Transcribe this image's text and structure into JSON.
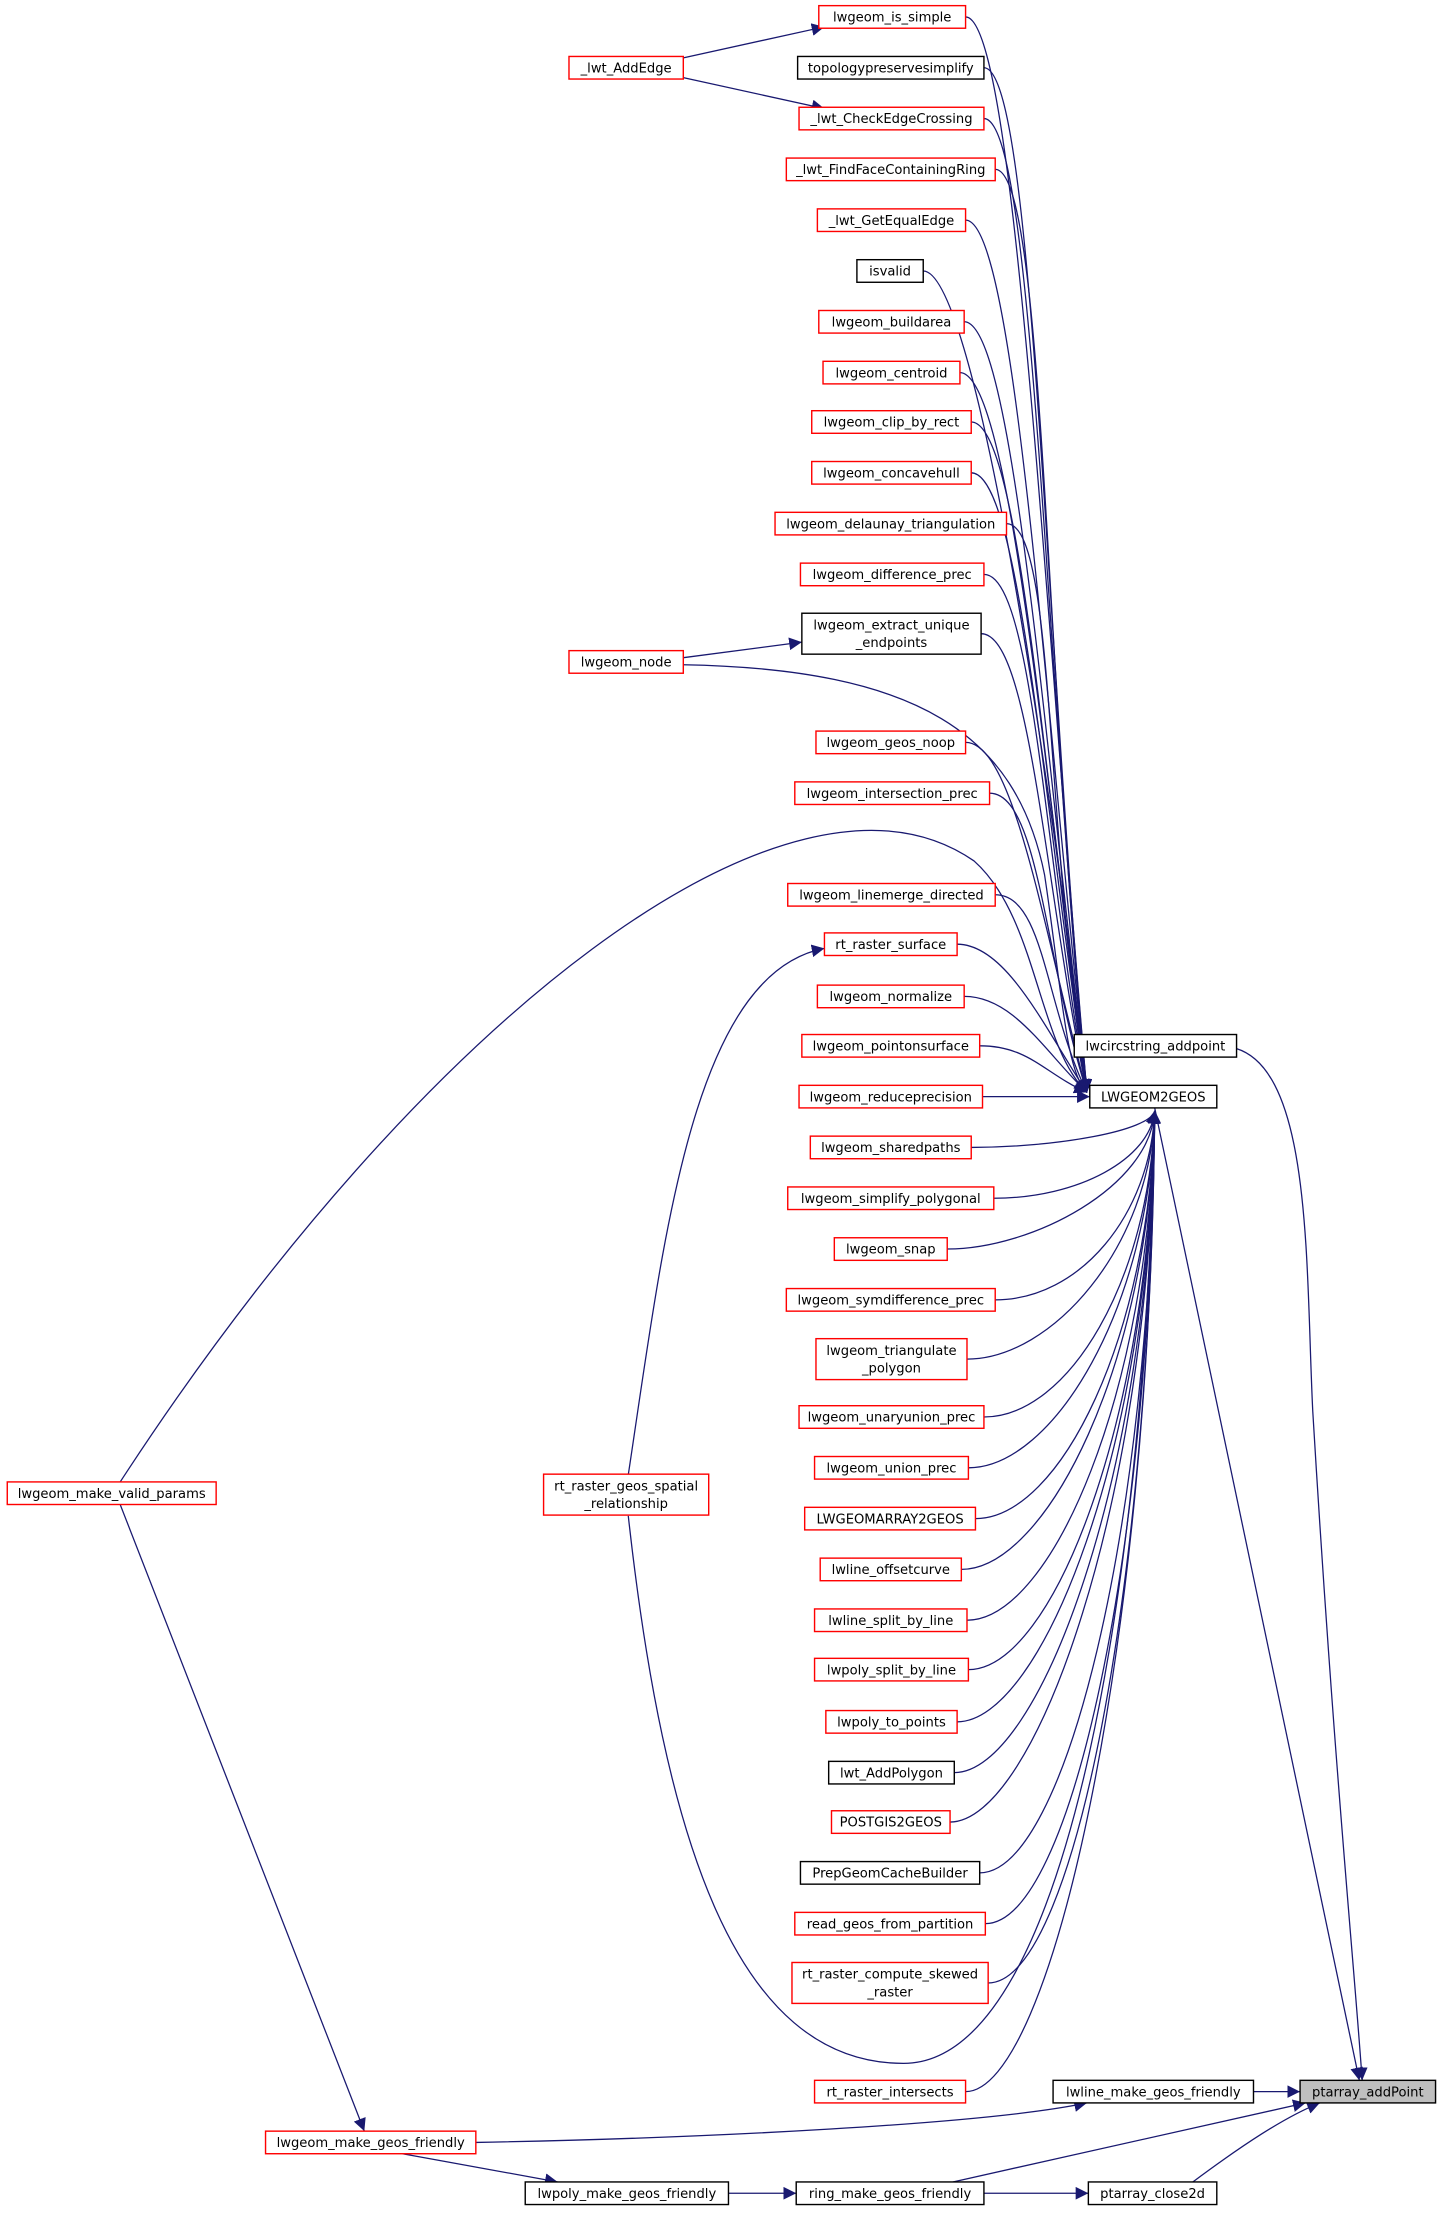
{
  "colors": {
    "edge": "#191970",
    "caller_border_truncated": "#ff0000",
    "caller_border": "#000000",
    "focus_fill": "#bfbfbf"
  },
  "nodes": [
    {
      "id": "lwgeom_is_simple",
      "lines": [
        "lwgeom_is_simple"
      ],
      "border": "red"
    },
    {
      "id": "topologypreservesimplify",
      "lines": [
        "topologypreservesimplify"
      ],
      "border": "black"
    },
    {
      "id": "_lwt_CheckEdgeCrossing",
      "lines": [
        "_lwt_CheckEdgeCrossing"
      ],
      "border": "red"
    },
    {
      "id": "_lwt_FindFaceContainingRing",
      "lines": [
        "_lwt_FindFaceContainingRing"
      ],
      "border": "red"
    },
    {
      "id": "_lwt_GetEqualEdge",
      "lines": [
        "_lwt_GetEqualEdge"
      ],
      "border": "red"
    },
    {
      "id": "isvalid",
      "lines": [
        "isvalid"
      ],
      "border": "black"
    },
    {
      "id": "lwgeom_buildarea",
      "lines": [
        "lwgeom_buildarea"
      ],
      "border": "red"
    },
    {
      "id": "lwgeom_centroid",
      "lines": [
        "lwgeom_centroid"
      ],
      "border": "red"
    },
    {
      "id": "lwgeom_clip_by_rect",
      "lines": [
        "lwgeom_clip_by_rect"
      ],
      "border": "red"
    },
    {
      "id": "lwgeom_concavehull",
      "lines": [
        "lwgeom_concavehull"
      ],
      "border": "red"
    },
    {
      "id": "lwgeom_delaunay_triangulation",
      "lines": [
        "lwgeom_delaunay_triangulation"
      ],
      "border": "red"
    },
    {
      "id": "lwgeom_difference_prec",
      "lines": [
        "lwgeom_difference_prec"
      ],
      "border": "red"
    },
    {
      "id": "lwgeom_extract_unique_endpoints",
      "lines": [
        "lwgeom_extract_unique",
        "_endpoints"
      ],
      "border": "black"
    },
    {
      "id": "lwgeom_geos_noop",
      "lines": [
        "lwgeom_geos_noop"
      ],
      "border": "red"
    },
    {
      "id": "lwgeom_intersection_prec",
      "lines": [
        "lwgeom_intersection_prec"
      ],
      "border": "red"
    },
    {
      "id": "lwgeom_linemerge_directed",
      "lines": [
        "lwgeom_linemerge_directed"
      ],
      "border": "red"
    },
    {
      "id": "rt_raster_surface",
      "lines": [
        "rt_raster_surface"
      ],
      "border": "red"
    },
    {
      "id": "lwgeom_normalize",
      "lines": [
        "lwgeom_normalize"
      ],
      "border": "red"
    },
    {
      "id": "lwgeom_pointonsurface",
      "lines": [
        "lwgeom_pointonsurface"
      ],
      "border": "red"
    },
    {
      "id": "lwgeom_reduceprecision",
      "lines": [
        "lwgeom_reduceprecision"
      ],
      "border": "red"
    },
    {
      "id": "lwgeom_sharedpaths",
      "lines": [
        "lwgeom_sharedpaths"
      ],
      "border": "red"
    },
    {
      "id": "lwgeom_simplify_polygonal",
      "lines": [
        "lwgeom_simplify_polygonal"
      ],
      "border": "red"
    },
    {
      "id": "lwgeom_snap",
      "lines": [
        "lwgeom_snap"
      ],
      "border": "red"
    },
    {
      "id": "lwgeom_symdifference_prec",
      "lines": [
        "lwgeom_symdifference_prec"
      ],
      "border": "red"
    },
    {
      "id": "lwgeom_triangulate_polygon",
      "lines": [
        "lwgeom_triangulate",
        "_polygon"
      ],
      "border": "red"
    },
    {
      "id": "lwgeom_unaryunion_prec",
      "lines": [
        "lwgeom_unaryunion_prec"
      ],
      "border": "red"
    },
    {
      "id": "lwgeom_union_prec",
      "lines": [
        "lwgeom_union_prec"
      ],
      "border": "red"
    },
    {
      "id": "LWGEOMARRAY2GEOS",
      "lines": [
        "LWGEOMARRAY2GEOS"
      ],
      "border": "red"
    },
    {
      "id": "lwline_offsetcurve",
      "lines": [
        "lwline_offsetcurve"
      ],
      "border": "red"
    },
    {
      "id": "lwline_split_by_line",
      "lines": [
        "lwline_split_by_line"
      ],
      "border": "red"
    },
    {
      "id": "lwpoly_split_by_line",
      "lines": [
        "lwpoly_split_by_line"
      ],
      "border": "red"
    },
    {
      "id": "lwpoly_to_points",
      "lines": [
        "lwpoly_to_points"
      ],
      "border": "red"
    },
    {
      "id": "lwt_AddPolygon",
      "lines": [
        "lwt_AddPolygon"
      ],
      "border": "black"
    },
    {
      "id": "POSTGIS2GEOS",
      "lines": [
        "POSTGIS2GEOS"
      ],
      "border": "red"
    },
    {
      "id": "PrepGeomCacheBuilder",
      "lines": [
        "PrepGeomCacheBuilder"
      ],
      "border": "black"
    },
    {
      "id": "read_geos_from_partition",
      "lines": [
        "read_geos_from_partition"
      ],
      "border": "red"
    },
    {
      "id": "rt_raster_compute_skewed_raster",
      "lines": [
        "rt_raster_compute_skewed",
        "_raster"
      ],
      "border": "red"
    },
    {
      "id": "rt_raster_intersects",
      "lines": [
        "rt_raster_intersects"
      ],
      "border": "red"
    },
    {
      "id": "_lwt_AddEdge",
      "lines": [
        "_lwt_AddEdge"
      ],
      "border": "red"
    },
    {
      "id": "lwgeom_node",
      "lines": [
        "lwgeom_node"
      ],
      "border": "red"
    },
    {
      "id": "lwgeom_make_valid_params",
      "lines": [
        "lwgeom_make_valid_params"
      ],
      "border": "red"
    },
    {
      "id": "rt_raster_geos_spatial_relationship",
      "lines": [
        "rt_raster_geos_spatial",
        "_relationship"
      ],
      "border": "red"
    },
    {
      "id": "lwgeom_make_geos_friendly",
      "lines": [
        "lwgeom_make_geos_friendly"
      ],
      "border": "red"
    },
    {
      "id": "lwpoly_make_geos_friendly",
      "lines": [
        "lwpoly_make_geos_friendly"
      ],
      "border": "black"
    },
    {
      "id": "ring_make_geos_friendly",
      "lines": [
        "ring_make_geos_friendly"
      ],
      "border": "black"
    },
    {
      "id": "ptarray_close2d",
      "lines": [
        "ptarray_close2d"
      ],
      "border": "black"
    },
    {
      "id": "lwline_make_geos_friendly",
      "lines": [
        "lwline_make_geos_friendly"
      ],
      "border": "black"
    },
    {
      "id": "LWGEOM2GEOS",
      "lines": [
        "LWGEOM2GEOS"
      ],
      "border": "black"
    },
    {
      "id": "lwcircstring_addpoint",
      "lines": [
        "lwcircstring_addpoint"
      ],
      "border": "black"
    },
    {
      "id": "ptarray_addPoint",
      "lines": [
        "ptarray_addPoint"
      ],
      "border": "black",
      "focus": true
    }
  ],
  "edges": [
    [
      "_lwt_AddEdge",
      "lwgeom_is_simple"
    ],
    [
      "_lwt_AddEdge",
      "_lwt_CheckEdgeCrossing"
    ],
    [
      "lwgeom_node",
      "lwgeom_extract_unique_endpoints"
    ],
    [
      "lwgeom_node",
      "LWGEOM2GEOS"
    ],
    [
      "lwgeom_make_valid_params",
      "LWGEOM2GEOS"
    ],
    [
      "lwgeom_make_valid_params",
      "lwgeom_make_geos_friendly"
    ],
    [
      "rt_raster_geos_spatial_relationship",
      "rt_raster_surface"
    ],
    [
      "rt_raster_geos_spatial_relationship",
      "LWGEOM2GEOS"
    ],
    [
      "lwgeom_is_simple",
      "LWGEOM2GEOS"
    ],
    [
      "topologypreservesimplify",
      "LWGEOM2GEOS"
    ],
    [
      "_lwt_CheckEdgeCrossing",
      "LWGEOM2GEOS"
    ],
    [
      "_lwt_FindFaceContainingRing",
      "LWGEOM2GEOS"
    ],
    [
      "_lwt_GetEqualEdge",
      "LWGEOM2GEOS"
    ],
    [
      "isvalid",
      "LWGEOM2GEOS"
    ],
    [
      "lwgeom_buildarea",
      "LWGEOM2GEOS"
    ],
    [
      "lwgeom_centroid",
      "LWGEOM2GEOS"
    ],
    [
      "lwgeom_clip_by_rect",
      "LWGEOM2GEOS"
    ],
    [
      "lwgeom_concavehull",
      "LWGEOM2GEOS"
    ],
    [
      "lwgeom_delaunay_triangulation",
      "LWGEOM2GEOS"
    ],
    [
      "lwgeom_difference_prec",
      "LWGEOM2GEOS"
    ],
    [
      "lwgeom_extract_unique_endpoints",
      "LWGEOM2GEOS"
    ],
    [
      "lwgeom_geos_noop",
      "LWGEOM2GEOS"
    ],
    [
      "lwgeom_intersection_prec",
      "LWGEOM2GEOS"
    ],
    [
      "lwgeom_linemerge_directed",
      "LWGEOM2GEOS"
    ],
    [
      "rt_raster_surface",
      "LWGEOM2GEOS"
    ],
    [
      "lwgeom_normalize",
      "LWGEOM2GEOS"
    ],
    [
      "lwgeom_pointonsurface",
      "LWGEOM2GEOS"
    ],
    [
      "lwgeom_reduceprecision",
      "LWGEOM2GEOS"
    ],
    [
      "lwgeom_sharedpaths",
      "LWGEOM2GEOS"
    ],
    [
      "lwgeom_simplify_polygonal",
      "LWGEOM2GEOS"
    ],
    [
      "lwgeom_snap",
      "LWGEOM2GEOS"
    ],
    [
      "lwgeom_symdifference_prec",
      "LWGEOM2GEOS"
    ],
    [
      "lwgeom_triangulate_polygon",
      "LWGEOM2GEOS"
    ],
    [
      "lwgeom_unaryunion_prec",
      "LWGEOM2GEOS"
    ],
    [
      "lwgeom_union_prec",
      "LWGEOM2GEOS"
    ],
    [
      "LWGEOMARRAY2GEOS",
      "LWGEOM2GEOS"
    ],
    [
      "lwline_offsetcurve",
      "LWGEOM2GEOS"
    ],
    [
      "lwline_split_by_line",
      "LWGEOM2GEOS"
    ],
    [
      "lwpoly_split_by_line",
      "LWGEOM2GEOS"
    ],
    [
      "lwpoly_to_points",
      "LWGEOM2GEOS"
    ],
    [
      "lwt_AddPolygon",
      "LWGEOM2GEOS"
    ],
    [
      "POSTGIS2GEOS",
      "LWGEOM2GEOS"
    ],
    [
      "PrepGeomCacheBuilder",
      "LWGEOM2GEOS"
    ],
    [
      "read_geos_from_partition",
      "LWGEOM2GEOS"
    ],
    [
      "rt_raster_compute_skewed_raster",
      "LWGEOM2GEOS"
    ],
    [
      "rt_raster_intersects",
      "LWGEOM2GEOS"
    ],
    [
      "LWGEOM2GEOS",
      "ptarray_addPoint"
    ],
    [
      "lwcircstring_addpoint",
      "ptarray_addPoint"
    ],
    [
      "lwline_make_geos_friendly",
      "ptarray_addPoint"
    ],
    [
      "lwgeom_make_geos_friendly",
      "lwline_make_geos_friendly"
    ],
    [
      "lwgeom_make_geos_friendly",
      "lwpoly_make_geos_friendly"
    ],
    [
      "lwpoly_make_geos_friendly",
      "ring_make_geos_friendly"
    ],
    [
      "ring_make_geos_friendly",
      "ptarray_addPoint"
    ],
    [
      "ring_make_geos_friendly",
      "ptarray_close2d"
    ],
    [
      "ptarray_close2d",
      "ptarray_addPoint"
    ]
  ]
}
